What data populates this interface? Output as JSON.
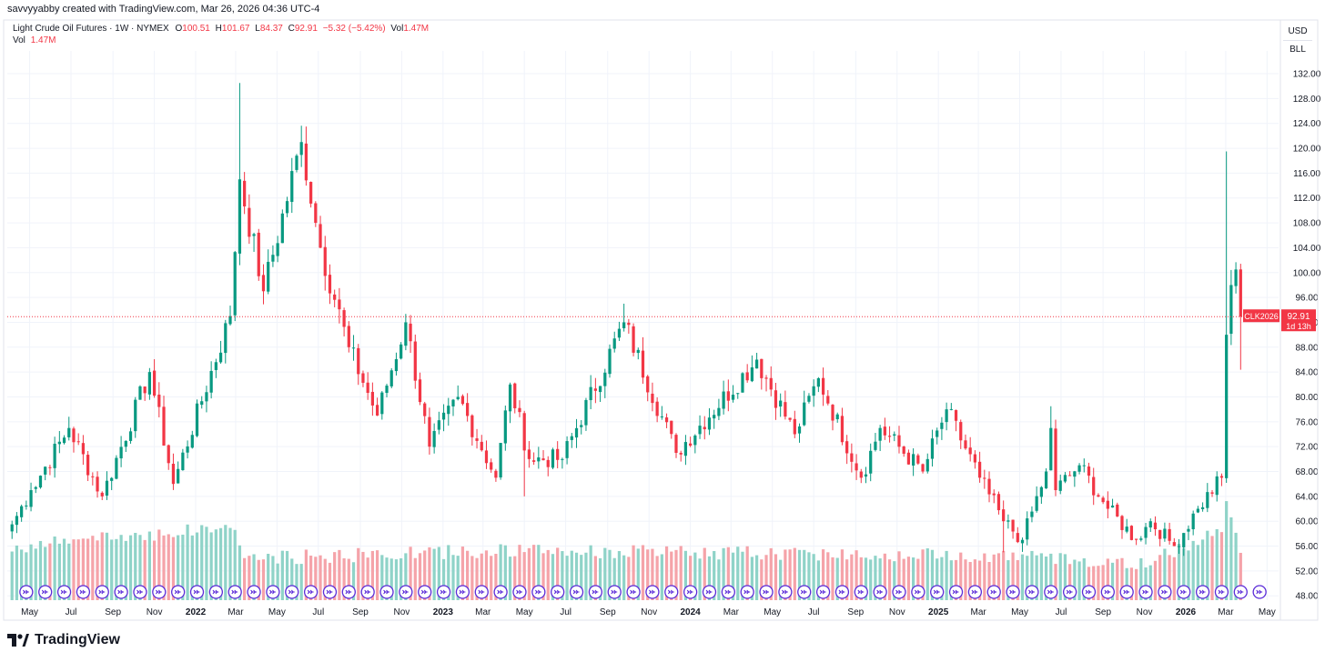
{
  "credit": "savvyyabby created with TradingView.com, Mar 26, 2026 04:36 UTC-4",
  "legend": {
    "symbol": "Light Crude Oil Futures · 1W · NYMEX",
    "o_label": "O",
    "o": "100.51",
    "h_label": "H",
    "h": "101.67",
    "l_label": "L",
    "l": "84.37",
    "c_label": "C",
    "c": "92.91",
    "change": "−5.32 (−5.42%)",
    "vol_label": "Vol",
    "vol": "1.47M"
  },
  "vol_legend": {
    "label": "Vol",
    "value": "1.47M"
  },
  "units": {
    "currency": "USD",
    "measure": "BLL"
  },
  "price_tag": {
    "symbol": "CLK2026",
    "price": "92.91",
    "countdown": "1d 13h"
  },
  "logo_text": "TradingView",
  "colors": {
    "up": "#089981",
    "down": "#f23645",
    "vol_up": "#8fd3c8",
    "vol_down": "#f5a3a9",
    "grid": "#f0f3fa",
    "text": "#131722",
    "event": "#2962ff"
  },
  "chart_data": {
    "type": "candlestick",
    "title": "Light Crude Oil Futures · 1W · NYMEX",
    "interval": "1W",
    "y_ticks": [
      48,
      52,
      56,
      60,
      64,
      68,
      72,
      76,
      80,
      84,
      88,
      92,
      96,
      100,
      104,
      108,
      112,
      116,
      120,
      124,
      128,
      132
    ],
    "y_tick_labels": [
      "48.00",
      "52.00",
      "56.00",
      "60.00",
      "64.00",
      "68.00",
      "72.00",
      "76.00",
      "80.00",
      "84.00",
      "88.00",
      "92.00",
      "96.00",
      "100.00",
      "104.00",
      "108.00",
      "112.00",
      "116.00",
      "120.00",
      "124.00",
      "128.00",
      "132.00"
    ],
    "ylim": [
      47.3,
      134.2
    ],
    "x_labels": [
      {
        "t": "May",
        "date": "2021-05-01",
        "bold": false
      },
      {
        "t": "Jul",
        "date": "2021-07-01",
        "bold": false
      },
      {
        "t": "Sep",
        "date": "2021-09-01",
        "bold": false
      },
      {
        "t": "Nov",
        "date": "2021-11-01",
        "bold": false
      },
      {
        "t": "2022",
        "date": "2022-01-01",
        "bold": true
      },
      {
        "t": "Mar",
        "date": "2022-03-01",
        "bold": false
      },
      {
        "t": "May",
        "date": "2022-05-01",
        "bold": false
      },
      {
        "t": "Jul",
        "date": "2022-07-01",
        "bold": false
      },
      {
        "t": "Sep",
        "date": "2022-09-01",
        "bold": false
      },
      {
        "t": "Nov",
        "date": "2022-11-01",
        "bold": false
      },
      {
        "t": "2023",
        "date": "2023-01-01",
        "bold": true
      },
      {
        "t": "Mar",
        "date": "2023-03-01",
        "bold": false
      },
      {
        "t": "May",
        "date": "2023-05-01",
        "bold": false
      },
      {
        "t": "Jul",
        "date": "2023-07-01",
        "bold": false
      },
      {
        "t": "Sep",
        "date": "2023-09-01",
        "bold": false
      },
      {
        "t": "Nov",
        "date": "2023-11-01",
        "bold": false
      },
      {
        "t": "2024",
        "date": "2024-01-01",
        "bold": true
      },
      {
        "t": "Mar",
        "date": "2024-03-01",
        "bold": false
      },
      {
        "t": "May",
        "date": "2024-05-01",
        "bold": false
      },
      {
        "t": "Jul",
        "date": "2024-07-01",
        "bold": false
      },
      {
        "t": "Sep",
        "date": "2024-09-01",
        "bold": false
      },
      {
        "t": "Nov",
        "date": "2024-11-01",
        "bold": false
      },
      {
        "t": "2025",
        "date": "2025-01-01",
        "bold": true
      },
      {
        "t": "Mar",
        "date": "2025-03-01",
        "bold": false
      },
      {
        "t": "May",
        "date": "2025-05-01",
        "bold": false
      },
      {
        "t": "Jul",
        "date": "2025-07-01",
        "bold": false
      },
      {
        "t": "Sep",
        "date": "2025-09-01",
        "bold": false
      },
      {
        "t": "Nov",
        "date": "2025-11-01",
        "bold": false
      },
      {
        "t": "2026",
        "date": "2026-01-01",
        "bold": true
      },
      {
        "t": "Mar",
        "date": "2026-03-01",
        "bold": false
      },
      {
        "t": "May",
        "date": "2026-05-01",
        "bold": false
      }
    ],
    "last_price": 92.91,
    "anchors": [
      {
        "date": "2021-04-05",
        "close": 59.5
      },
      {
        "date": "2021-05-03",
        "close": 65
      },
      {
        "date": "2021-06-28",
        "close": 75
      },
      {
        "date": "2021-08-16",
        "close": 64
      },
      {
        "date": "2021-10-25",
        "close": 84
      },
      {
        "date": "2021-11-29",
        "close": 66
      },
      {
        "date": "2022-02-21",
        "close": 93
      },
      {
        "date": "2022-03-07",
        "close": 115
      },
      {
        "date": "2022-04-11",
        "close": 97
      },
      {
        "date": "2022-06-06",
        "close": 121
      },
      {
        "date": "2022-07-04",
        "close": 104
      },
      {
        "date": "2022-08-15",
        "close": 88
      },
      {
        "date": "2022-09-26",
        "close": 77
      },
      {
        "date": "2022-11-07",
        "close": 92
      },
      {
        "date": "2022-12-12",
        "close": 72
      },
      {
        "date": "2023-01-23",
        "close": 80
      },
      {
        "date": "2023-03-20",
        "close": 67
      },
      {
        "date": "2023-04-10",
        "close": 82
      },
      {
        "date": "2023-05-08",
        "close": 70
      },
      {
        "date": "2023-06-26",
        "close": 70
      },
      {
        "date": "2023-09-25",
        "close": 92
      },
      {
        "date": "2023-12-11",
        "close": 71
      },
      {
        "date": "2024-04-08",
        "close": 86
      },
      {
        "date": "2024-06-03",
        "close": 74
      },
      {
        "date": "2024-07-08",
        "close": 83
      },
      {
        "date": "2024-09-09",
        "close": 67
      },
      {
        "date": "2024-10-07",
        "close": 75
      },
      {
        "date": "2024-12-09",
        "close": 68
      },
      {
        "date": "2025-01-13",
        "close": 78
      },
      {
        "date": "2025-03-03",
        "close": 67
      },
      {
        "date": "2025-04-07",
        "close": 60
      },
      {
        "date": "2025-05-05",
        "close": 57
      },
      {
        "date": "2025-06-09",
        "close": 68
      },
      {
        "date": "2025-06-16",
        "close": 75
      },
      {
        "date": "2025-06-23",
        "close": 65
      },
      {
        "date": "2025-07-28",
        "close": 69
      },
      {
        "date": "2025-09-08",
        "close": 62
      },
      {
        "date": "2025-10-20",
        "close": 57
      },
      {
        "date": "2025-11-10",
        "close": 60
      },
      {
        "date": "2025-12-15",
        "close": 56
      },
      {
        "date": "2026-01-19",
        "close": 62
      },
      {
        "date": "2026-02-23",
        "close": 67
      },
      {
        "date": "2026-03-02",
        "close": 90
      },
      {
        "date": "2026-03-09",
        "close": 98
      },
      {
        "date": "2026-03-16",
        "close": 100.5
      },
      {
        "date": "2026-03-23",
        "close": 92.91
      }
    ],
    "notable_highs": [
      {
        "date": "2022-03-07",
        "high": 130.5
      },
      {
        "date": "2022-06-13",
        "high": 123.5
      },
      {
        "date": "2023-09-25",
        "high": 95
      },
      {
        "date": "2025-06-16",
        "high": 78.5
      },
      {
        "date": "2026-03-02",
        "high": 119.5
      },
      {
        "date": "2026-03-16",
        "high": 101.67
      }
    ],
    "notable_lows": [
      {
        "date": "2023-05-01",
        "low": 64
      },
      {
        "date": "2025-04-07",
        "low": 55
      },
      {
        "date": "2026-03-23",
        "low": 84.37
      }
    ],
    "volume_profile": [
      {
        "date": "2021-04-05",
        "vol": 0.45
      },
      {
        "date": "2021-10-04",
        "vol": 0.55
      },
      {
        "date": "2022-02-28",
        "vol": 0.62
      },
      {
        "date": "2022-03-14",
        "vol": 0.35
      },
      {
        "date": "2023-03-13",
        "vol": 0.42
      },
      {
        "date": "2025-04-07",
        "vol": 0.38
      },
      {
        "date": "2025-11-03",
        "vol": 0.3
      },
      {
        "date": "2026-02-23",
        "vol": 0.62
      },
      {
        "date": "2026-03-02",
        "vol": 0.85
      },
      {
        "date": "2026-03-23",
        "vol": 0.45
      }
    ]
  }
}
